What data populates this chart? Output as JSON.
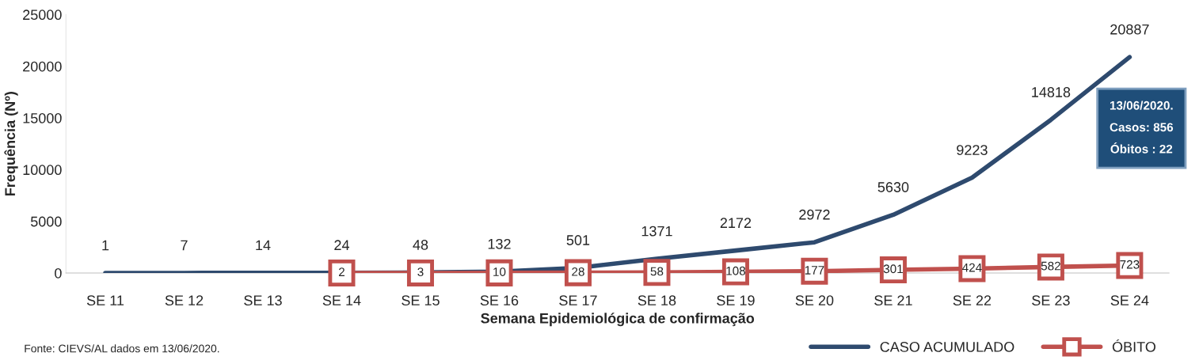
{
  "chart_data": {
    "type": "line",
    "xlabel": "Semana Epidemiológica de confirmação",
    "ylabel": "Frequência (Nº)",
    "categories": [
      "SE 11",
      "SE 12",
      "SE 13",
      "SE 14",
      "SE 15",
      "SE 16",
      "SE 17",
      "SE 18",
      "SE 19",
      "SE 20",
      "SE 21",
      "SE 22",
      "SE 23",
      "SE 24"
    ],
    "series": [
      {
        "name": "CASO ACUMULADO",
        "color": "#2e4a6e",
        "marker": "none",
        "values": [
          1,
          7,
          14,
          24,
          48,
          132,
          501,
          1371,
          2172,
          2972,
          5630,
          9223,
          14818,
          20887
        ]
      },
      {
        "name": "ÓBITO",
        "color": "#c0504d",
        "marker": "square",
        "values": [
          null,
          null,
          null,
          2,
          3,
          10,
          28,
          58,
          108,
          177,
          301,
          424,
          582,
          723
        ]
      }
    ],
    "ylim": [
      0,
      25000
    ],
    "yticks": [
      0,
      5000,
      10000,
      15000,
      20000,
      25000
    ],
    "data_labels": true,
    "grid": false,
    "legend": "bottom right",
    "annotations": [
      "13/06/2020.\nCasos: 856\nÓbitos : 22",
      "Fonte: CIEVS/AL dados em 13/06/2020."
    ]
  }
}
